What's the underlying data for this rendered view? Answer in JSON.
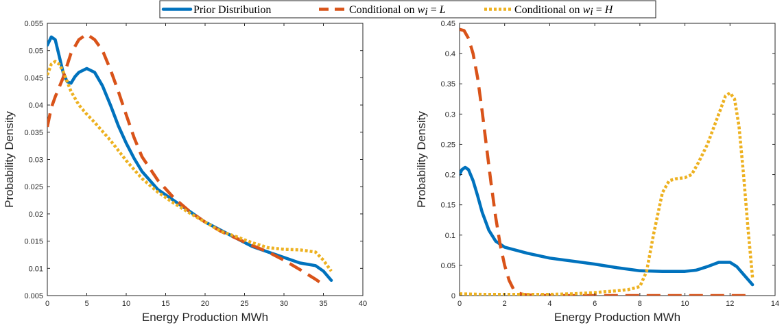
{
  "legend": {
    "entries": [
      {
        "label": "Prior Distribution",
        "style": "solid"
      },
      {
        "label": "Conditional on ",
        "math_var": "w",
        "math_sub": "i",
        "math_eq": " = ",
        "math_val": "L",
        "style": "dashed"
      },
      {
        "label": "Conditional on ",
        "math_var": "w",
        "math_sub": "i",
        "math_eq": " = ",
        "math_val": "H",
        "style": "dotted"
      }
    ]
  },
  "colors": {
    "prior": "#0072BD",
    "low": "#D95319",
    "high": "#EDB120"
  },
  "chart_data": [
    {
      "type": "line",
      "xlabel": "Energy Production MWh",
      "ylabel": "Probability Density",
      "xlim": [
        0,
        40
      ],
      "ylim": [
        0.005,
        0.055
      ],
      "xticks": [
        0,
        5,
        10,
        15,
        20,
        25,
        30,
        35,
        40
      ],
      "yticks": [
        0.005,
        0.01,
        0.015,
        0.02,
        0.025,
        0.03,
        0.035,
        0.04,
        0.045,
        0.05,
        0.055
      ],
      "ytick_labels": [
        "0.005",
        "0.01",
        "0.015",
        "0.02",
        "0.025",
        "0.03",
        "0.035",
        "0.04",
        "0.045",
        "0.05",
        "0.055"
      ],
      "grid": false,
      "series": [
        {
          "key": "prior",
          "style": "solid",
          "x": [
            0,
            0.5,
            1,
            1.5,
            2,
            2.5,
            3,
            3.5,
            4,
            5,
            6,
            7,
            8,
            9,
            10,
            11,
            12,
            14,
            16,
            18,
            20,
            22,
            24,
            26,
            28,
            30,
            32,
            34,
            35,
            36
          ],
          "y": [
            0.051,
            0.0525,
            0.052,
            0.049,
            0.046,
            0.0443,
            0.044,
            0.0452,
            0.046,
            0.0467,
            0.046,
            0.0435,
            0.04,
            0.0362,
            0.033,
            0.0302,
            0.0278,
            0.0245,
            0.0225,
            0.0205,
            0.0185,
            0.017,
            0.0155,
            0.014,
            0.013,
            0.012,
            0.011,
            0.0105,
            0.0095,
            0.0078
          ]
        },
        {
          "key": "low",
          "style": "dashed",
          "x": [
            0,
            0.5,
            1,
            2,
            3,
            4,
            5,
            6,
            7,
            8,
            9,
            10,
            11,
            12,
            14,
            16,
            18,
            20,
            22,
            24,
            26,
            28,
            30,
            32,
            34,
            35
          ],
          "y": [
            0.036,
            0.0395,
            0.0415,
            0.045,
            0.0495,
            0.052,
            0.053,
            0.052,
            0.05,
            0.0465,
            0.0425,
            0.0382,
            0.034,
            0.0305,
            0.0262,
            0.023,
            0.0205,
            0.0185,
            0.0168,
            0.0155,
            0.0142,
            0.013,
            0.0115,
            0.0098,
            0.008,
            0.007
          ]
        },
        {
          "key": "high",
          "style": "dotted",
          "x": [
            0,
            0.5,
            1,
            1.5,
            2,
            3,
            4,
            5,
            6,
            8,
            10,
            12,
            14,
            16,
            18,
            20,
            22,
            24,
            26,
            28,
            30,
            32,
            34,
            35,
            36
          ],
          "y": [
            0.0455,
            0.0475,
            0.048,
            0.0475,
            0.0462,
            0.0425,
            0.04,
            0.0383,
            0.0368,
            0.0335,
            0.0298,
            0.0265,
            0.024,
            0.022,
            0.0202,
            0.0185,
            0.0168,
            0.0158,
            0.0147,
            0.0138,
            0.0135,
            0.0134,
            0.013,
            0.0115,
            0.0095
          ]
        }
      ]
    },
    {
      "type": "line",
      "xlabel": "Energy Production MWh",
      "ylabel": "Probability Density",
      "xlim": [
        0,
        14
      ],
      "ylim": [
        0,
        0.45
      ],
      "xticks": [
        0,
        2,
        4,
        6,
        8,
        10,
        12,
        14
      ],
      "yticks": [
        0,
        0.05,
        0.1,
        0.15,
        0.2,
        0.25,
        0.3,
        0.35,
        0.4,
        0.45
      ],
      "ytick_labels": [
        "0",
        "0.05",
        "0.1",
        "0.15",
        "0.2",
        "0.25",
        "0.3",
        "0.35",
        "0.4",
        "0.45"
      ],
      "grid": false,
      "series": [
        {
          "key": "prior",
          "style": "solid",
          "x": [
            0,
            0.1,
            0.25,
            0.4,
            0.6,
            0.8,
            1,
            1.3,
            1.6,
            2,
            3,
            4,
            5,
            6,
            7,
            8,
            9,
            10,
            10.5,
            11,
            11.5,
            12,
            12.3,
            12.6,
            13
          ],
          "y": [
            0.2,
            0.208,
            0.212,
            0.208,
            0.19,
            0.165,
            0.138,
            0.108,
            0.09,
            0.08,
            0.07,
            0.062,
            0.057,
            0.052,
            0.046,
            0.041,
            0.04,
            0.04,
            0.042,
            0.048,
            0.055,
            0.055,
            0.048,
            0.035,
            0.018
          ]
        },
        {
          "key": "low",
          "style": "dashed",
          "x": [
            0,
            0.2,
            0.4,
            0.6,
            0.8,
            1,
            1.2,
            1.4,
            1.6,
            1.8,
            2,
            2.2,
            2.4,
            2.7,
            3,
            4,
            5,
            6,
            8,
            10,
            12,
            13
          ],
          "y": [
            0.44,
            0.438,
            0.425,
            0.4,
            0.36,
            0.305,
            0.245,
            0.185,
            0.13,
            0.085,
            0.05,
            0.025,
            0.01,
            0.003,
            0.001,
            0.0,
            0.0,
            0.0,
            0.0,
            0.0,
            0.0,
            0.0
          ]
        },
        {
          "key": "high",
          "style": "dotted",
          "x": [
            0,
            1,
            2,
            3,
            4,
            5,
            6,
            7,
            7.5,
            8,
            8.3,
            8.6,
            9,
            9.3,
            9.6,
            10,
            10.3,
            10.6,
            11,
            11.5,
            11.8,
            12,
            12.2,
            12.4,
            12.6,
            12.8,
            13
          ],
          "y": [
            0.003,
            0.002,
            0.002,
            0.002,
            0.002,
            0.003,
            0.005,
            0.008,
            0.01,
            0.015,
            0.04,
            0.1,
            0.17,
            0.19,
            0.193,
            0.195,
            0.2,
            0.22,
            0.25,
            0.3,
            0.33,
            0.335,
            0.325,
            0.28,
            0.2,
            0.11,
            0.03
          ]
        }
      ]
    }
  ]
}
